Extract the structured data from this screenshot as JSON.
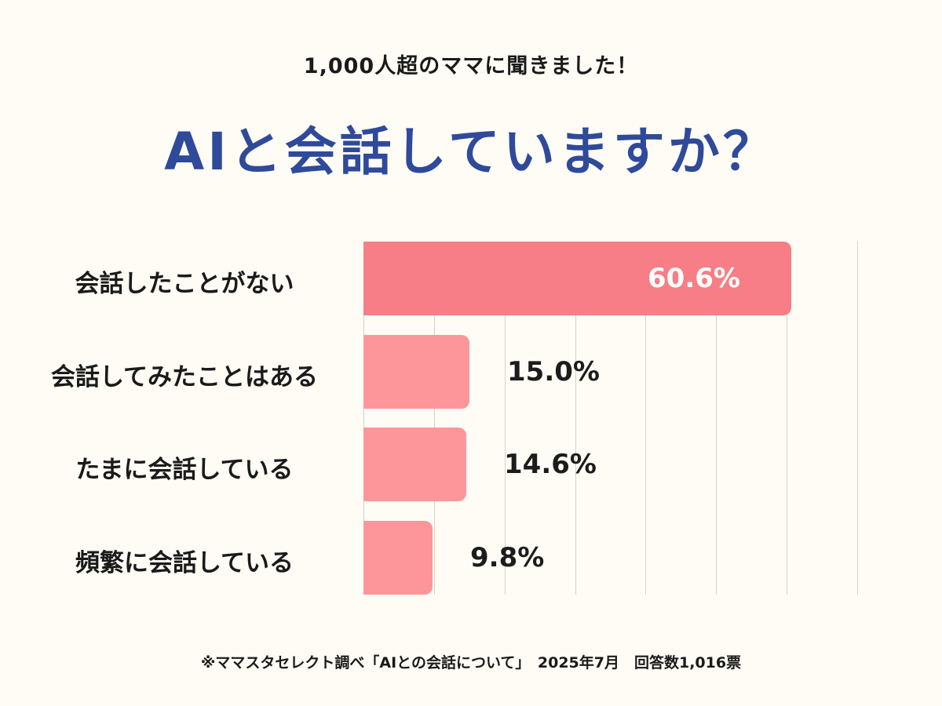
{
  "header": {
    "subtitle": "1,000人超のママに聞きました！",
    "title": "AIと会話していますか？"
  },
  "colors": {
    "background": "#fefcf5",
    "title": "#2f4a9a",
    "bar_primary": "#f77e86",
    "bar_secondary": "#fd969b",
    "gridline": "#d6d2c6"
  },
  "chart_data": {
    "type": "bar",
    "orientation": "horizontal",
    "title": "AIと会話していますか？",
    "subtitle": "1,000人超のママに聞きました！",
    "categories": [
      "会話したことがない",
      "会話してみたことはある",
      "たまに会話している",
      "頻繁に会話している"
    ],
    "values": [
      60.6,
      15.0,
      14.6,
      9.8
    ],
    "value_labels": [
      "60.6%",
      "15.0%",
      "14.6%",
      "9.8%"
    ],
    "xlabel": "",
    "ylabel": "",
    "xlim": [
      0,
      70
    ],
    "grid": true,
    "grid_step": 10,
    "legend": "none",
    "unit": "%"
  },
  "footnote": "※ママスタセレクト調べ「AIとの会話について」　2025年7月　回答数1,016票"
}
